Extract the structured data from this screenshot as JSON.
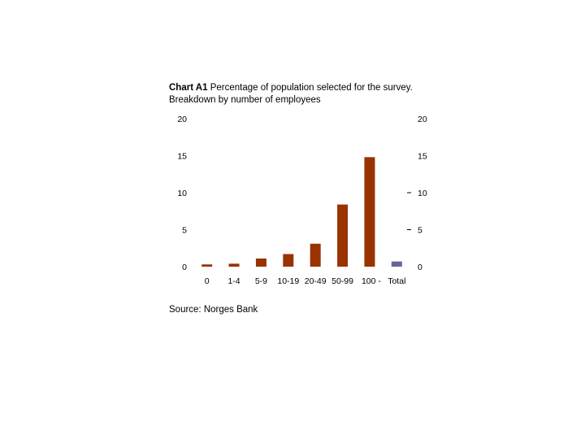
{
  "chart_data": {
    "type": "bar",
    "title_label": "Chart A1",
    "title_text": "Percentage of population selected for the survey.",
    "subtitle": "Breakdown by number of employees",
    "categories": [
      "0",
      "1-4",
      "5-9",
      "10-19",
      "20-49",
      "50-99",
      "100 -",
      "Total"
    ],
    "values": [
      0.3,
      0.4,
      1.1,
      1.7,
      3.1,
      8.4,
      14.8,
      0.7
    ],
    "colors": [
      "#993300",
      "#993300",
      "#993300",
      "#993300",
      "#993300",
      "#993300",
      "#993300",
      "#666699"
    ],
    "ylim": [
      0,
      20
    ],
    "yticks": [
      0,
      5,
      10,
      15,
      20
    ],
    "xlabel": "",
    "ylabel": "",
    "grid": false,
    "secondary_axis": true,
    "source": "Source: Norges Bank"
  }
}
